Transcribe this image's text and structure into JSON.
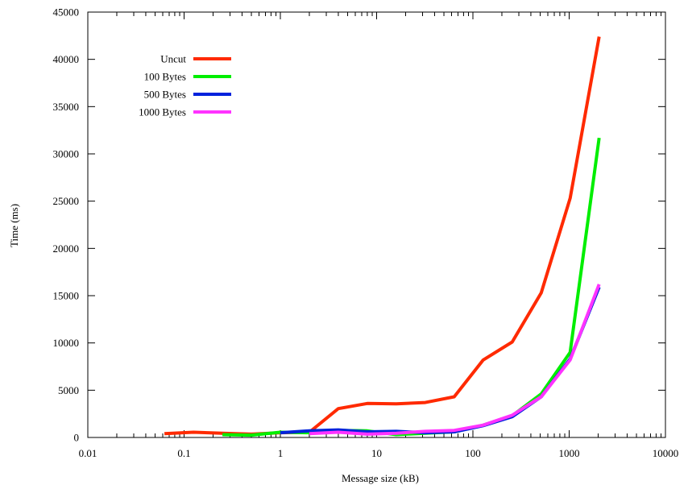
{
  "chart_data": {
    "type": "line",
    "xlabel": "Message size (kB)",
    "ylabel": "Time (ms)",
    "x_scale": "log",
    "xlim": [
      0.01,
      10000
    ],
    "ylim": [
      0,
      45000
    ],
    "x_ticks": [
      {
        "value": 0.01,
        "label": "0.01"
      },
      {
        "value": 0.1,
        "label": "0.1"
      },
      {
        "value": 1,
        "label": "1"
      },
      {
        "value": 10,
        "label": "10"
      },
      {
        "value": 100,
        "label": "100"
      },
      {
        "value": 1000,
        "label": "1000"
      },
      {
        "value": 10000,
        "label": "10000"
      }
    ],
    "y_ticks": [
      {
        "value": 0,
        "label": "0"
      },
      {
        "value": 5000,
        "label": "5000"
      },
      {
        "value": 10000,
        "label": "10000"
      },
      {
        "value": 15000,
        "label": "15000"
      },
      {
        "value": 20000,
        "label": "20000"
      },
      {
        "value": 25000,
        "label": "25000"
      },
      {
        "value": 30000,
        "label": "30000"
      },
      {
        "value": 35000,
        "label": "35000"
      },
      {
        "value": 40000,
        "label": "40000"
      },
      {
        "value": 45000,
        "label": "45000"
      }
    ],
    "grid": false,
    "legend_position": "top-left",
    "series": [
      {
        "name": "Uncut",
        "color": "#ff2a00",
        "points": [
          [
            0.0625,
            400
          ],
          [
            0.125,
            550
          ],
          [
            0.25,
            450
          ],
          [
            0.5,
            350
          ],
          [
            1,
            500
          ],
          [
            2,
            550
          ],
          [
            4,
            3050
          ],
          [
            8,
            3600
          ],
          [
            16,
            3550
          ],
          [
            32,
            3700
          ],
          [
            64,
            4300
          ],
          [
            128,
            8200
          ],
          [
            256,
            10100
          ],
          [
            512,
            15300
          ],
          [
            1024,
            25300
          ],
          [
            2048,
            42400
          ]
        ]
      },
      {
        "name": "100 Bytes",
        "color": "#00ee00",
        "points": [
          [
            0.25,
            300
          ],
          [
            0.5,
            250
          ],
          [
            1,
            550
          ],
          [
            2,
            500
          ],
          [
            4,
            750
          ],
          [
            8,
            700
          ],
          [
            16,
            300
          ],
          [
            32,
            450
          ],
          [
            64,
            600
          ],
          [
            128,
            1300
          ],
          [
            256,
            2300
          ],
          [
            512,
            4600
          ],
          [
            1024,
            9000
          ],
          [
            2048,
            31700
          ]
        ]
      },
      {
        "name": "500 Bytes",
        "color": "#0022dd",
        "points": [
          [
            1,
            500
          ],
          [
            2,
            700
          ],
          [
            4,
            800
          ],
          [
            8,
            600
          ],
          [
            16,
            650
          ],
          [
            32,
            500
          ],
          [
            64,
            600
          ],
          [
            128,
            1250
          ],
          [
            256,
            2200
          ],
          [
            512,
            4300
          ],
          [
            1024,
            8300
          ],
          [
            2048,
            15900
          ]
        ]
      },
      {
        "name": "1000 Bytes",
        "color": "#ff33ff",
        "points": [
          [
            2,
            400
          ],
          [
            4,
            550
          ],
          [
            8,
            350
          ],
          [
            16,
            450
          ],
          [
            32,
            650
          ],
          [
            64,
            750
          ],
          [
            128,
            1300
          ],
          [
            256,
            2350
          ],
          [
            512,
            4300
          ],
          [
            1024,
            8200
          ],
          [
            2048,
            16200
          ]
        ]
      }
    ]
  }
}
